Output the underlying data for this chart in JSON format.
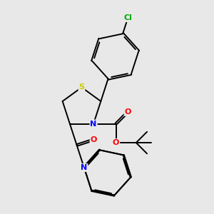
{
  "bg_color": "#e8e8e8",
  "atom_colors": {
    "S": "#cccc00",
    "N": "#0000ff",
    "O": "#ff0000",
    "Cl": "#00aa00",
    "C": "#000000"
  },
  "figsize": [
    3.0,
    3.0
  ],
  "dpi": 100
}
